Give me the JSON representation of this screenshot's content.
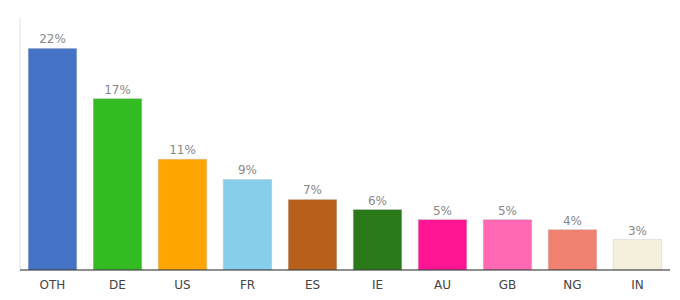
{
  "chart_data": {
    "type": "bar",
    "categories": [
      "OTH",
      "DE",
      "US",
      "FR",
      "ES",
      "IE",
      "AU",
      "GB",
      "NG",
      "IN"
    ],
    "values": [
      22,
      17,
      11,
      9,
      7,
      6,
      5,
      5,
      4,
      3
    ],
    "value_labels": [
      "22%",
      "17%",
      "11%",
      "9%",
      "7%",
      "6%",
      "5%",
      "5%",
      "4%",
      "3%"
    ],
    "colors": [
      "#4472C4",
      "#33BB22",
      "#FFA500",
      "#87CEEB",
      "#B8601A",
      "#2A7A1A",
      "#FF1493",
      "#FF69B4",
      "#F08070",
      "#F5F0DC"
    ],
    "ylim": [
      0,
      25
    ],
    "data_labels": true,
    "tick_labels": "x",
    "grid": false
  }
}
